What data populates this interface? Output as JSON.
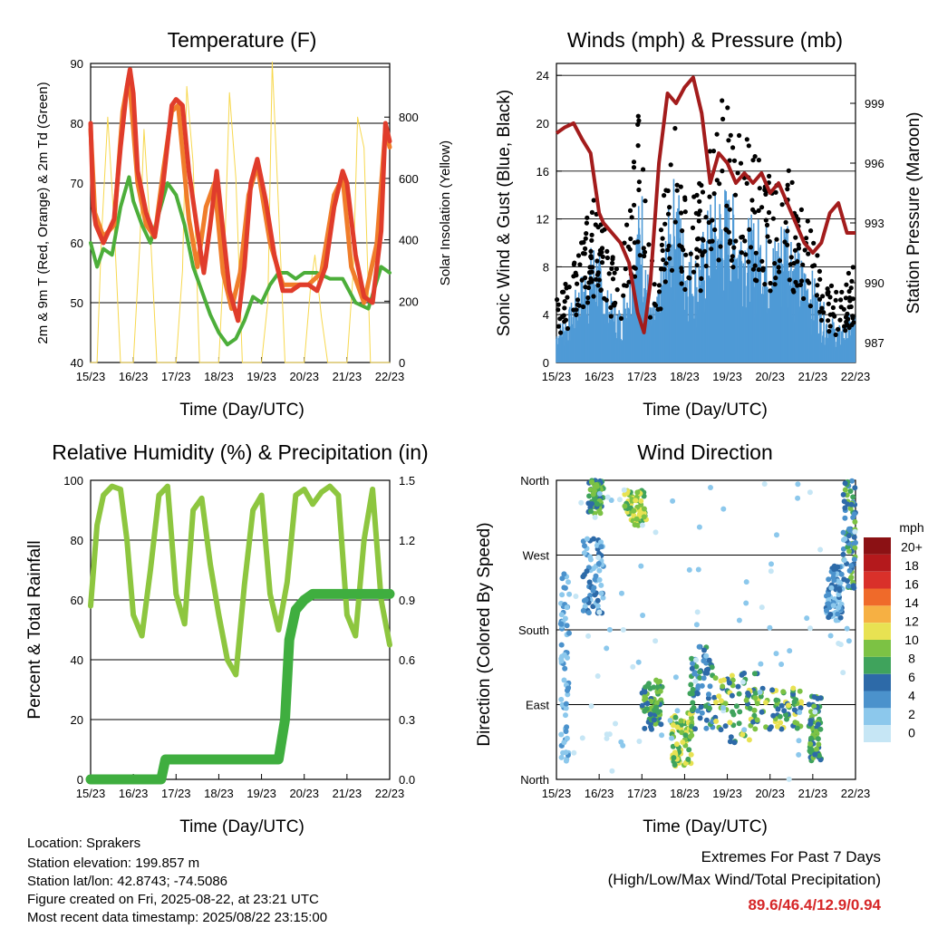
{
  "chart_data": [
    {
      "id": "temperature",
      "type": "line",
      "title": "Temperature (F)",
      "xlabel": "Time (Day/UTC)",
      "ylabel": "2m & 9m T (Red, Orange) & 2m Td (Green)",
      "ylabel_right": "Solar Insolation (Yellow)",
      "x_ticks": [
        "15/23",
        "16/23",
        "17/23",
        "18/23",
        "19/23",
        "20/23",
        "21/23",
        "22/23"
      ],
      "ylim": [
        40,
        90
      ],
      "y_ticks": [
        "40",
        "50",
        "60",
        "70",
        "80",
        "90"
      ],
      "ylim_right": [
        0,
        975
      ],
      "y_ticks_right": [
        "0",
        "200",
        "400",
        "600",
        "800"
      ],
      "series": [
        {
          "color": "#e03c2b",
          "x": [
            0,
            0.06,
            0.12,
            0.3,
            0.55,
            0.7,
            0.85,
            0.92,
            1.0,
            1.1,
            1.3,
            1.5,
            1.7,
            1.9,
            2.0,
            2.15,
            2.3,
            2.5,
            2.65,
            2.8,
            2.95,
            3.1,
            3.25,
            3.45,
            3.6,
            3.75,
            3.9,
            4.1,
            4.3,
            4.5,
            4.7,
            4.9,
            5.1,
            5.3,
            5.5,
            5.7,
            5.9,
            6.0,
            6.2,
            6.4,
            6.6,
            6.8,
            6.9,
            7.0
          ],
          "y": [
            80,
            66,
            63,
            60,
            64,
            76,
            86,
            89,
            85,
            72,
            65,
            61,
            70,
            83,
            84,
            83,
            72,
            62,
            55,
            63,
            72,
            62,
            52,
            47,
            56,
            70,
            74,
            67,
            58,
            52,
            52,
            53,
            53,
            52,
            56,
            66,
            72,
            70,
            58,
            51,
            50,
            62,
            80,
            77
          ]
        },
        {
          "color": "#f07d2a",
          "x": [
            0,
            0.1,
            0.3,
            0.55,
            0.75,
            0.9,
            1.1,
            1.3,
            1.5,
            1.7,
            1.9,
            2.05,
            2.3,
            2.5,
            2.7,
            2.9,
            3.1,
            3.3,
            3.5,
            3.7,
            3.9,
            4.2,
            4.5,
            4.8,
            5.1,
            5.4,
            5.7,
            5.9,
            6.1,
            6.4,
            6.7,
            6.9,
            7.0
          ],
          "y": [
            79,
            65,
            61,
            63,
            82,
            88,
            70,
            63,
            61,
            72,
            82,
            83,
            64,
            56,
            66,
            70,
            55,
            49,
            55,
            68,
            73,
            60,
            53,
            53,
            53,
            55,
            68,
            71,
            56,
            50,
            60,
            79,
            76
          ]
        },
        {
          "color": "#4cae3a",
          "x": [
            0,
            0.15,
            0.3,
            0.5,
            0.7,
            0.9,
            1.0,
            1.2,
            1.4,
            1.6,
            1.8,
            2.0,
            2.2,
            2.4,
            2.6,
            2.8,
            3.0,
            3.2,
            3.4,
            3.6,
            3.8,
            4.0,
            4.2,
            4.4,
            4.6,
            4.8,
            5.0,
            5.3,
            5.6,
            5.9,
            6.2,
            6.5,
            6.8,
            7.0
          ],
          "y": [
            60,
            56,
            59,
            58,
            66,
            71,
            67,
            63,
            60,
            65,
            70,
            68,
            63,
            56,
            52,
            48,
            45,
            43,
            44,
            47,
            51,
            50,
            53,
            55,
            55,
            54,
            55,
            55,
            54,
            54,
            50,
            49,
            56,
            55
          ]
        },
        {
          "color": "#f7d84f",
          "x": [
            0,
            0.15,
            0.25,
            0.4,
            0.55,
            0.7,
            0.85,
            1.0,
            1.15,
            1.25,
            1.4,
            1.55,
            1.7,
            1.85,
            2.0,
            2.15,
            2.25,
            2.4,
            2.55,
            2.7,
            2.85,
            3.0,
            3.15,
            3.25,
            3.4,
            3.55,
            3.7,
            3.85,
            4.0,
            4.15,
            4.25,
            4.4,
            4.55,
            4.7,
            4.85,
            5.0,
            5.15,
            5.25,
            5.4,
            5.55,
            5.7,
            5.85,
            6.0,
            6.15,
            6.25,
            6.4,
            6.55,
            6.7,
            6.85,
            7.0
          ],
          "y": [
            0,
            0,
            400,
            800,
            450,
            0,
            0,
            0,
            380,
            760,
            420,
            0,
            0,
            0,
            0,
            300,
            900,
            650,
            0,
            0,
            0,
            0,
            420,
            880,
            600,
            0,
            0,
            0,
            0,
            200,
            980,
            500,
            0,
            0,
            0,
            0,
            250,
            350,
            150,
            0,
            0,
            0,
            0,
            300,
            800,
            700,
            0,
            0,
            0,
            0
          ]
        }
      ]
    },
    {
      "id": "winds",
      "type": "scatter",
      "title": "Winds (mph) & Pressure (mb)",
      "xlabel": "Time (Day/UTC)",
      "ylabel": "Sonic Wind & Gust (Blue, Black)",
      "ylabel_right": "Station Pressure (Maroon)",
      "x_ticks": [
        "15/23",
        "16/23",
        "17/23",
        "18/23",
        "19/23",
        "20/23",
        "21/23",
        "22/23"
      ],
      "ylim": [
        0,
        25
      ],
      "y_ticks": [
        "0",
        "4",
        "8",
        "12",
        "16",
        "20",
        "24"
      ],
      "ylim_right": [
        986,
        1001
      ],
      "y_ticks_right": [
        "987",
        "990",
        "993",
        "996",
        "999"
      ],
      "pressure": {
        "color": "#a31c1c",
        "x": [
          0,
          0.2,
          0.4,
          0.6,
          0.8,
          1.0,
          1.1,
          1.3,
          1.5,
          1.7,
          1.9,
          2.05,
          2.2,
          2.4,
          2.6,
          2.8,
          3.0,
          3.2,
          3.4,
          3.6,
          3.8,
          4.0,
          4.2,
          4.4,
          4.6,
          4.8,
          5.0,
          5.2,
          5.4,
          5.6,
          5.8,
          6.0,
          6.2,
          6.4,
          6.6,
          6.8,
          7.0
        ],
        "y": [
          997.5,
          997.8,
          998.0,
          997.2,
          996.5,
          993.5,
          993.0,
          992.5,
          992.0,
          991.0,
          988.5,
          987.5,
          990.0,
          996.0,
          999.5,
          999.0,
          999.8,
          1000.3,
          998.5,
          995.0,
          996.5,
          996.0,
          995.0,
          995.5,
          995.0,
          995.5,
          994.5,
          995.0,
          994.0,
          993.0,
          992.0,
          991.5,
          992.0,
          993.5,
          994.0,
          992.5,
          992.5
        ]
      },
      "wind": {
        "color": "#4f9ad6",
        "x": [
          0,
          0.3,
          0.6,
          0.9,
          1.2,
          1.5,
          1.8,
          2.0,
          2.2,
          2.4,
          2.6,
          2.8,
          3.0,
          3.3,
          3.6,
          3.9,
          4.2,
          4.5,
          4.8,
          5.1,
          5.4,
          5.7,
          6.0,
          6.3,
          6.6,
          7.0
        ],
        "y": [
          2,
          3,
          5,
          7,
          4,
          3,
          7,
          10,
          3,
          4,
          8,
          11,
          7,
          6,
          9,
          10,
          9,
          8,
          8,
          7,
          9,
          6,
          5,
          3,
          2,
          3
        ]
      },
      "gust": {
        "color": "#000000",
        "x": [
          0,
          0.3,
          0.6,
          0.9,
          1.2,
          1.5,
          1.8,
          2.0,
          2.2,
          2.4,
          2.6,
          2.8,
          3.0,
          3.3,
          3.6,
          3.9,
          4.2,
          4.5,
          4.8,
          5.1,
          5.4,
          5.7,
          6.0,
          6.3,
          6.6,
          7.0
        ],
        "y": [
          4,
          5,
          8,
          10,
          7,
          5,
          12,
          16,
          6,
          7,
          12,
          15,
          10,
          10,
          13,
          16,
          14,
          13,
          12,
          10,
          12,
          9,
          8,
          5,
          4,
          6
        ]
      }
    },
    {
      "id": "humidity",
      "type": "line",
      "title": "Relative Humidity (%) & Precipitation (in)",
      "xlabel": "Time (Day/UTC)",
      "ylabel": "Percent & Total Rainfall",
      "x_ticks": [
        "15/23",
        "16/23",
        "17/23",
        "18/23",
        "19/23",
        "20/23",
        "21/23",
        "22/23"
      ],
      "ylim": [
        0,
        100
      ],
      "y_ticks": [
        "0",
        "20",
        "40",
        "60",
        "80",
        "100"
      ],
      "ylim_right": [
        0,
        1.5
      ],
      "y_ticks_right": [
        "0.0",
        "0.3",
        "0.6",
        "0.9",
        "1.2",
        "1.5"
      ],
      "series": [
        {
          "name": "RH",
          "color": "#8dc63f",
          "x": [
            0,
            0.15,
            0.3,
            0.5,
            0.7,
            0.85,
            1.0,
            1.2,
            1.4,
            1.6,
            1.8,
            2.0,
            2.2,
            2.4,
            2.6,
            2.8,
            3.0,
            3.2,
            3.4,
            3.6,
            3.8,
            4.0,
            4.2,
            4.4,
            4.6,
            4.8,
            5.0,
            5.2,
            5.4,
            5.6,
            5.8,
            6.0,
            6.2,
            6.4,
            6.6,
            6.8,
            7.0
          ],
          "y": [
            58,
            85,
            95,
            98,
            97,
            80,
            55,
            48,
            70,
            95,
            98,
            62,
            52,
            90,
            94,
            72,
            55,
            40,
            35,
            65,
            90,
            95,
            62,
            50,
            66,
            95,
            97,
            92,
            96,
            98,
            95,
            55,
            48,
            80,
            97,
            60,
            45
          ]
        },
        {
          "name": "Rain",
          "color": "#3fae3f",
          "x": [
            0,
            1.0,
            1.65,
            1.75,
            2.5,
            3.5,
            4.4,
            4.55,
            4.65,
            4.8,
            5.0,
            5.2,
            5.5,
            6.0,
            6.5,
            7.0
          ],
          "y": [
            0,
            0,
            0,
            0.1,
            0.1,
            0.1,
            0.1,
            0.3,
            0.7,
            0.85,
            0.9,
            0.93,
            0.93,
            0.93,
            0.93,
            0.93
          ]
        }
      ]
    },
    {
      "id": "direction",
      "type": "scatter",
      "title": "Wind Direction",
      "xlabel": "Time (Day/UTC)",
      "ylabel": "Direction (Colored By Speed)",
      "x_ticks": [
        "15/23",
        "16/23",
        "17/23",
        "18/23",
        "19/23",
        "20/23",
        "21/23",
        "22/23"
      ],
      "y_ticks": [
        "North",
        "East",
        "South",
        "West",
        "North"
      ],
      "colorbar": {
        "title": "mph",
        "labels": [
          "0",
          "2",
          "4",
          "6",
          "8",
          "10",
          "12",
          "14",
          "16",
          "18",
          "20+"
        ],
        "colors": [
          "#c6e6f5",
          "#8cc8ec",
          "#4b92cc",
          "#2d6aa8",
          "#3fa35c",
          "#7cc244",
          "#e8e252",
          "#f6b043",
          "#ef6a2a",
          "#d9302a",
          "#b4191c",
          "#8b1114"
        ]
      },
      "clusters": [
        {
          "x": [
            0.1,
            0.3
          ],
          "dir": [
            20,
            250
          ],
          "c": [
            1,
            2
          ]
        },
        {
          "x": [
            0.6,
            1.1
          ],
          "dir": [
            200,
            290
          ],
          "c": [
            1,
            3
          ]
        },
        {
          "x": [
            0.75,
            1.1
          ],
          "dir": [
            320,
            360
          ],
          "c": [
            3,
            5
          ]
        },
        {
          "x": [
            1.6,
            2.1
          ],
          "dir": [
            305,
            350
          ],
          "c": [
            4,
            6
          ]
        },
        {
          "x": [
            2.0,
            2.5
          ],
          "dir": [
            60,
            120
          ],
          "c": [
            3,
            5
          ]
        },
        {
          "x": [
            2.7,
            3.2
          ],
          "dir": [
            15,
            80
          ],
          "c": [
            4,
            6
          ]
        },
        {
          "x": [
            3.1,
            3.7
          ],
          "dir": [
            60,
            160
          ],
          "c": [
            2,
            4
          ]
        },
        {
          "x": [
            3.7,
            4.7
          ],
          "dir": [
            40,
            130
          ],
          "c": [
            3,
            6
          ]
        },
        {
          "x": [
            4.6,
            5.8
          ],
          "dir": [
            60,
            110
          ],
          "c": [
            3,
            6
          ]
        },
        {
          "x": [
            5.9,
            6.2
          ],
          "dir": [
            20,
            100
          ],
          "c": [
            3,
            5
          ]
        },
        {
          "x": [
            6.3,
            6.7
          ],
          "dir": [
            190,
            260
          ],
          "c": [
            1,
            3
          ]
        },
        {
          "x": [
            6.7,
            7.0
          ],
          "dir": [
            230,
            360
          ],
          "c": [
            2,
            5
          ]
        },
        {
          "x": [
            0.0,
            7.0
          ],
          "dir": [
            0,
            360
          ],
          "c": [
            0,
            1
          ]
        }
      ]
    }
  ],
  "footer": {
    "location": "Location: Sprakers",
    "elevation": "Station elevation: 199.857 m",
    "latlon": "Station lat/lon: 42.8743; -74.5086",
    "created": "Figure created on Fri, 2025-08-22, at 23:21 UTC",
    "recent": "Most recent data timestamp: 2025/08/22 23:15:00"
  },
  "extremes": {
    "title": "Extremes For Past 7 Days",
    "subtitle": "(High/Low/Max Wind/Total Precipitation)",
    "values": "89.6/46.4/12.9/0.94"
  }
}
